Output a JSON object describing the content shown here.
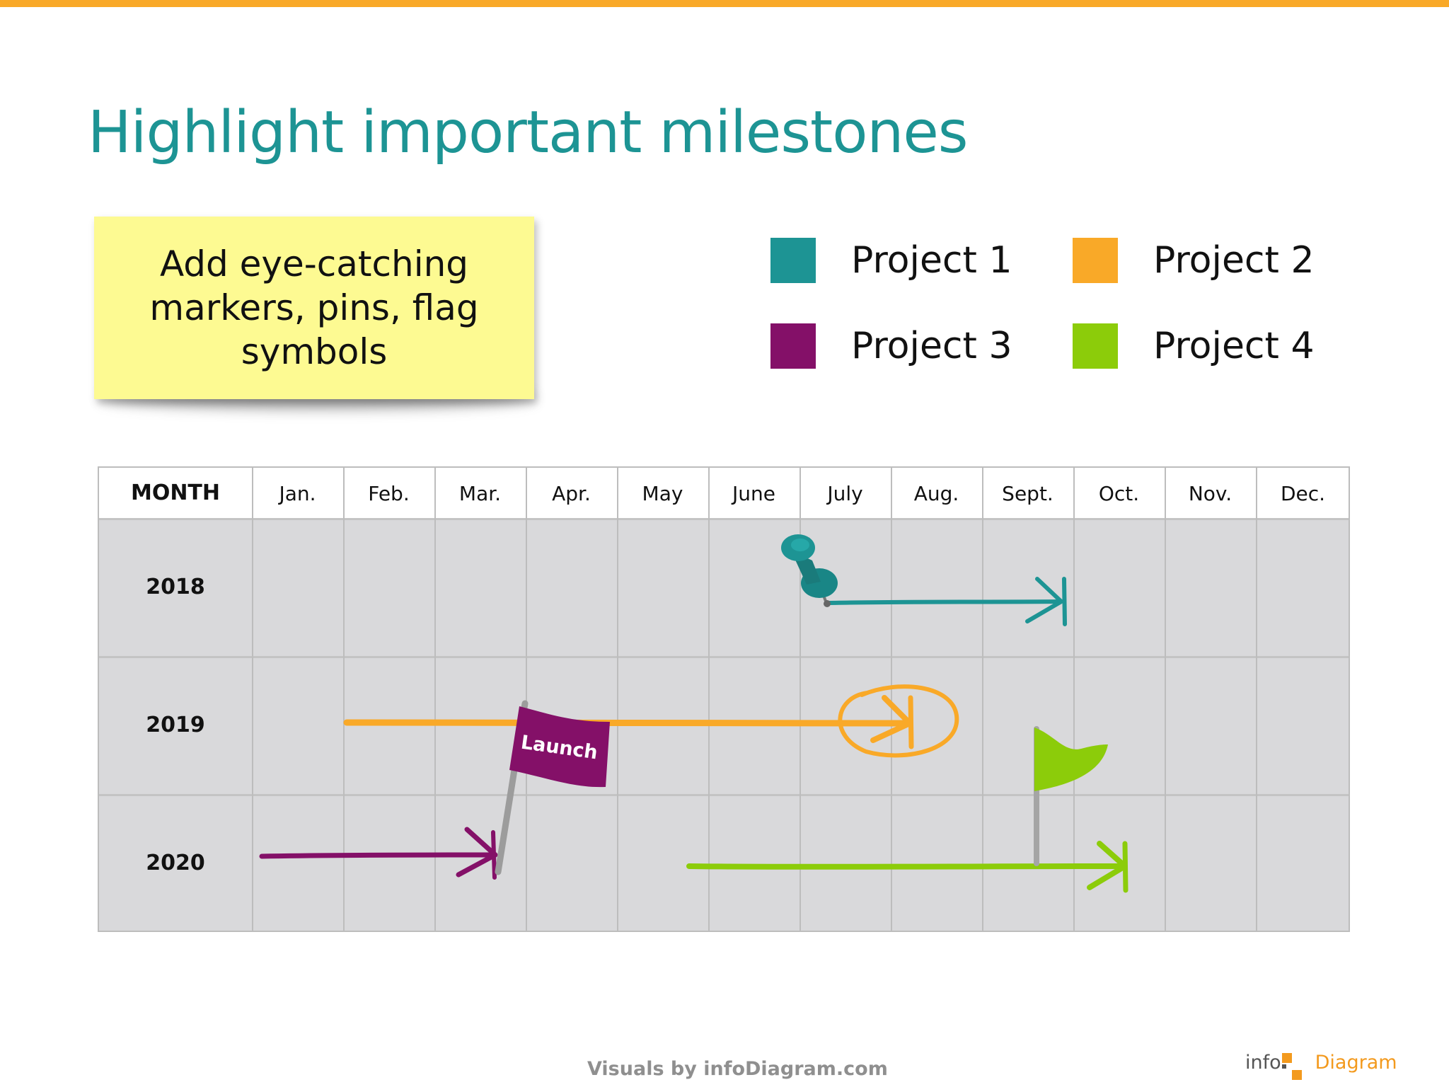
{
  "slide": {
    "title": "Highlight important milestones",
    "accent_color": "#f9a928",
    "title_color": "#1d9494"
  },
  "note": {
    "text": "Add eye-catching markers, pins, flag symbols",
    "background_color": "#fdfa92"
  },
  "legend": [
    {
      "label": "Project 1",
      "color": "#1d9494"
    },
    {
      "label": "Project 2",
      "color": "#f9a928"
    },
    {
      "label": "Project 3",
      "color": "#841068"
    },
    {
      "label": "Project 4",
      "color": "#8ccc0a"
    }
  ],
  "timeline": {
    "header_label": "MONTH",
    "months": [
      "Jan.",
      "Feb.",
      "Mar.",
      "Apr.",
      "May",
      "June",
      "July",
      "Aug.",
      "Sept.",
      "Oct.",
      "Nov.",
      "Dec."
    ],
    "years": [
      "2018",
      "2019",
      "2020"
    ],
    "projects": [
      {
        "project": "Project 1",
        "year": "2018",
        "start_month": 7.3,
        "end_month": 9.9,
        "marker": "push-pin",
        "color": "#1d9494"
      },
      {
        "project": "Project 2",
        "year": "2019",
        "start_month": 2.0,
        "end_month": 8.2,
        "marker": "circle-highlight",
        "color": "#f9a928"
      },
      {
        "project": "Project 3",
        "year": "2020",
        "start_month": 0.1,
        "end_month": 3.6,
        "marker": "flag",
        "marker_label": "Launch",
        "color": "#841068"
      },
      {
        "project": "Project 4",
        "year": "2020",
        "start_month": 5.7,
        "end_month": 10.6,
        "marker": "flag",
        "color": "#8ccc0a"
      }
    ]
  },
  "footer": {
    "credit": "Visuals by infoDiagram.com",
    "logo_left": "info",
    "logo_right": "Diagram"
  }
}
